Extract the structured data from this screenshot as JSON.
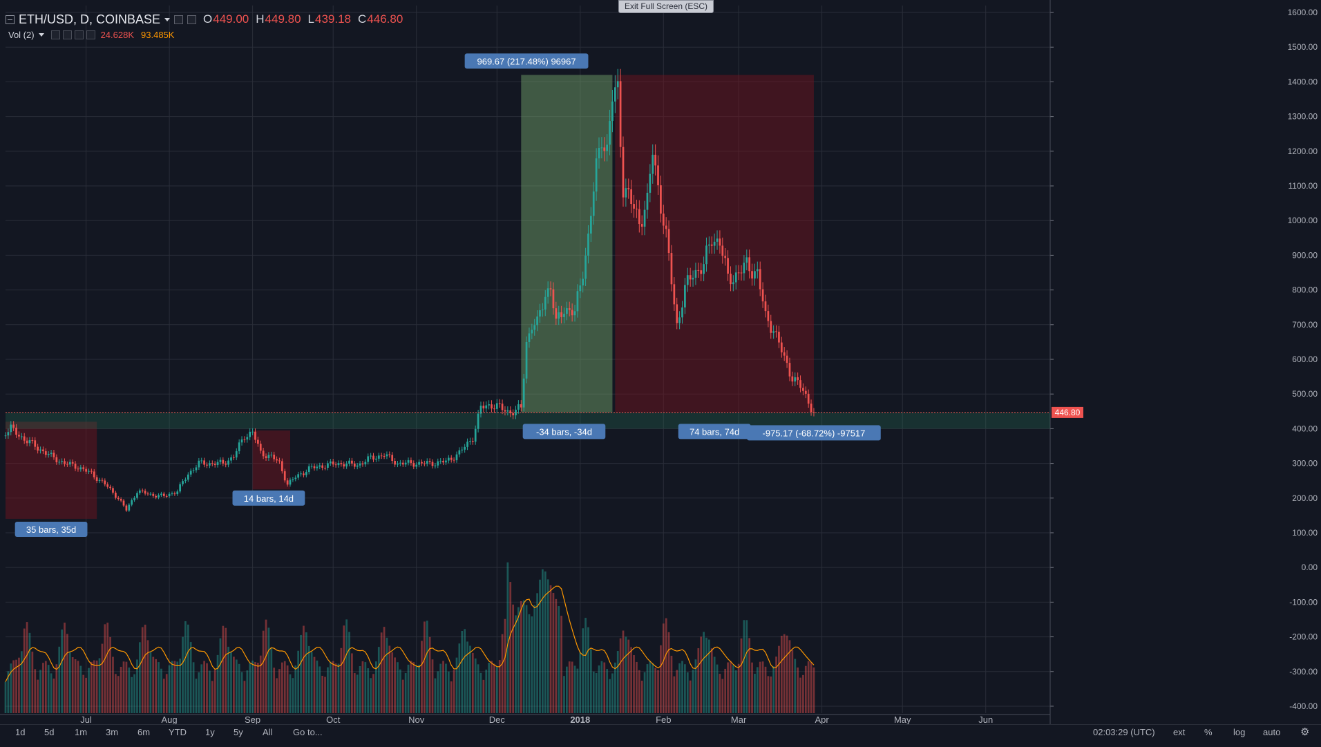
{
  "header": {
    "symbol": "ETH/USD, D, COINBASE",
    "o_label": "O",
    "o_value": "449.00",
    "h_label": "H",
    "h_value": "449.80",
    "l_label": "L",
    "l_value": "439.18",
    "c_label": "C",
    "c_value": "446.80"
  },
  "volume": {
    "label": "Vol (2)",
    "value1": "24.628K",
    "value2": "93.485K"
  },
  "exit_fullscreen": "Exit Full Screen (ESC)",
  "bottom": {
    "periods": [
      "1d",
      "5d",
      "1m",
      "3m",
      "6m",
      "YTD",
      "1y",
      "5y",
      "All",
      "Go to..."
    ],
    "time": "02:03:29 (UTC)",
    "ext": "ext",
    "percent": "%",
    "log": "log",
    "auto": "auto"
  },
  "colors": {
    "up": "#26a69a",
    "down": "#ef5350",
    "bg": "#131722",
    "grid": "#2a2e39",
    "label_bg": "#4a78b4",
    "ma": "#ff9800"
  },
  "chart_data": {
    "type": "candlestick",
    "title": "ETH/USD, D, COINBASE",
    "xlabel": "",
    "ylabel": "",
    "x_range": [
      "2017-06-01",
      "2018-06-25"
    ],
    "y_range": [
      -420,
      1620
    ],
    "y_ticks": [
      "1600.00",
      "1500.00",
      "1400.00",
      "1300.00",
      "1200.00",
      "1100.00",
      "1000.00",
      "900.00",
      "800.00",
      "700.00",
      "600.00",
      "500.00",
      "400.00",
      "300.00",
      "200.00",
      "100.00",
      "0.00",
      "-100.00",
      "-200.00",
      "-300.00",
      "-400.00"
    ],
    "x_ticks": [
      {
        "label": "Jul",
        "date": "2017-07-01"
      },
      {
        "label": "Aug",
        "date": "2017-08-01"
      },
      {
        "label": "Sep",
        "date": "2017-09-01"
      },
      {
        "label": "Oct",
        "date": "2017-10-01"
      },
      {
        "label": "Nov",
        "date": "2017-11-01"
      },
      {
        "label": "Dec",
        "date": "2017-12-01"
      },
      {
        "label": "2018",
        "date": "2018-01-01"
      },
      {
        "label": "Feb",
        "date": "2018-02-01"
      },
      {
        "label": "Mar",
        "date": "2018-03-01"
      },
      {
        "label": "Apr",
        "date": "2018-04-01"
      },
      {
        "label": "May",
        "date": "2018-05-01"
      },
      {
        "label": "Jun",
        "date": "2018-06-01"
      }
    ],
    "grid": true,
    "last_price": "446.80",
    "price_path": [
      [
        "2017-06-01",
        390
      ],
      [
        "2017-06-03",
        400
      ],
      [
        "2017-06-08",
        370
      ],
      [
        "2017-06-12",
        350
      ],
      [
        "2017-06-18",
        320
      ],
      [
        "2017-06-23",
        300
      ],
      [
        "2017-06-28",
        290
      ],
      [
        "2017-07-03",
        270
      ],
      [
        "2017-07-08",
        240
      ],
      [
        "2017-07-13",
        200
      ],
      [
        "2017-07-16",
        165
      ],
      [
        "2017-07-20",
        220
      ],
      [
        "2017-07-25",
        210
      ],
      [
        "2017-07-30",
        205
      ],
      [
        "2017-08-04",
        220
      ],
      [
        "2017-08-08",
        270
      ],
      [
        "2017-08-12",
        300
      ],
      [
        "2017-08-16",
        300
      ],
      [
        "2017-08-21",
        300
      ],
      [
        "2017-08-25",
        320
      ],
      [
        "2017-08-29",
        380
      ],
      [
        "2017-09-01",
        390
      ],
      [
        "2017-09-04",
        330
      ],
      [
        "2017-09-08",
        320
      ],
      [
        "2017-09-11",
        300
      ],
      [
        "2017-09-14",
        240
      ],
      [
        "2017-09-17",
        260
      ],
      [
        "2017-09-22",
        285
      ],
      [
        "2017-09-28",
        295
      ],
      [
        "2017-10-04",
        300
      ],
      [
        "2017-10-10",
        295
      ],
      [
        "2017-10-15",
        315
      ],
      [
        "2017-10-20",
        325
      ],
      [
        "2017-10-25",
        300
      ],
      [
        "2017-10-31",
        300
      ],
      [
        "2017-11-06",
        300
      ],
      [
        "2017-11-12",
        305
      ],
      [
        "2017-11-17",
        330
      ],
      [
        "2017-11-22",
        375
      ],
      [
        "2017-11-25",
        460
      ],
      [
        "2017-11-29",
        470
      ],
      [
        "2017-12-02",
        460
      ],
      [
        "2017-12-05",
        450
      ],
      [
        "2017-12-08",
        450
      ],
      [
        "2017-12-10",
        460
      ],
      [
        "2017-12-12",
        650
      ],
      [
        "2017-12-14",
        700
      ],
      [
        "2017-12-16",
        700
      ],
      [
        "2017-12-19",
        790
      ],
      [
        "2017-12-21",
        810
      ],
      [
        "2017-12-23",
        700
      ],
      [
        "2017-12-26",
        750
      ],
      [
        "2017-12-30",
        730
      ],
      [
        "2018-01-02",
        860
      ],
      [
        "2018-01-04",
        950
      ],
      [
        "2018-01-07",
        1150
      ],
      [
        "2018-01-09",
        1250
      ],
      [
        "2018-01-11",
        1200
      ],
      [
        "2018-01-13",
        1350
      ],
      [
        "2018-01-15",
        1380
      ],
      [
        "2018-01-17",
        1100
      ],
      [
        "2018-01-20",
        1050
      ],
      [
        "2018-01-23",
        1000
      ],
      [
        "2018-01-26",
        1050
      ],
      [
        "2018-01-28",
        1200
      ],
      [
        "2018-01-30",
        1100
      ],
      [
        "2018-02-02",
        950
      ],
      [
        "2018-02-06",
        700
      ],
      [
        "2018-02-09",
        800
      ],
      [
        "2018-02-12",
        850
      ],
      [
        "2018-02-16",
        870
      ],
      [
        "2018-02-19",
        950
      ],
      [
        "2018-02-22",
        940
      ],
      [
        "2018-02-25",
        830
      ],
      [
        "2018-03-01",
        850
      ],
      [
        "2018-03-04",
        870
      ],
      [
        "2018-03-08",
        850
      ],
      [
        "2018-03-11",
        720
      ],
      [
        "2018-03-14",
        690
      ],
      [
        "2018-03-18",
        600
      ],
      [
        "2018-03-21",
        550
      ],
      [
        "2018-03-24",
        520
      ],
      [
        "2018-03-27",
        480
      ],
      [
        "2018-03-29",
        446.8
      ]
    ],
    "ranges": [
      {
        "start": "2017-06-01",
        "end": "2017-07-05",
        "top": 420,
        "bottom": 140,
        "color": "down"
      },
      {
        "start": "2017-09-01",
        "end": "2017-09-15",
        "top": 395,
        "bottom": 225,
        "color": "down"
      },
      {
        "start": "2017-12-10",
        "end": "2018-01-13",
        "top": 1420,
        "bottom": 446.8,
        "color": "up"
      },
      {
        "start": "2018-01-14",
        "end": "2018-03-29",
        "top": 1420,
        "bottom": 446.8,
        "color": "down"
      }
    ],
    "annotations": [
      {
        "text": "969.67 (217.48%) 96967",
        "date": "2017-12-12",
        "value": 1460
      },
      {
        "text": "-34 bars, -34d",
        "date": "2017-12-26",
        "value": 392
      },
      {
        "text": "74 bars, 74d",
        "date": "2018-02-20",
        "value": 392
      },
      {
        "text": "-975.17 (-68.72%) -97517",
        "date": "2018-03-29",
        "value": 388
      },
      {
        "text": "14 bars, 14d",
        "date": "2017-09-07",
        "value": 200
      },
      {
        "text": "35 bars, 35d",
        "date": "2017-06-18",
        "value": 110
      }
    ],
    "volume_panel": {
      "ma_length": 9
    }
  }
}
